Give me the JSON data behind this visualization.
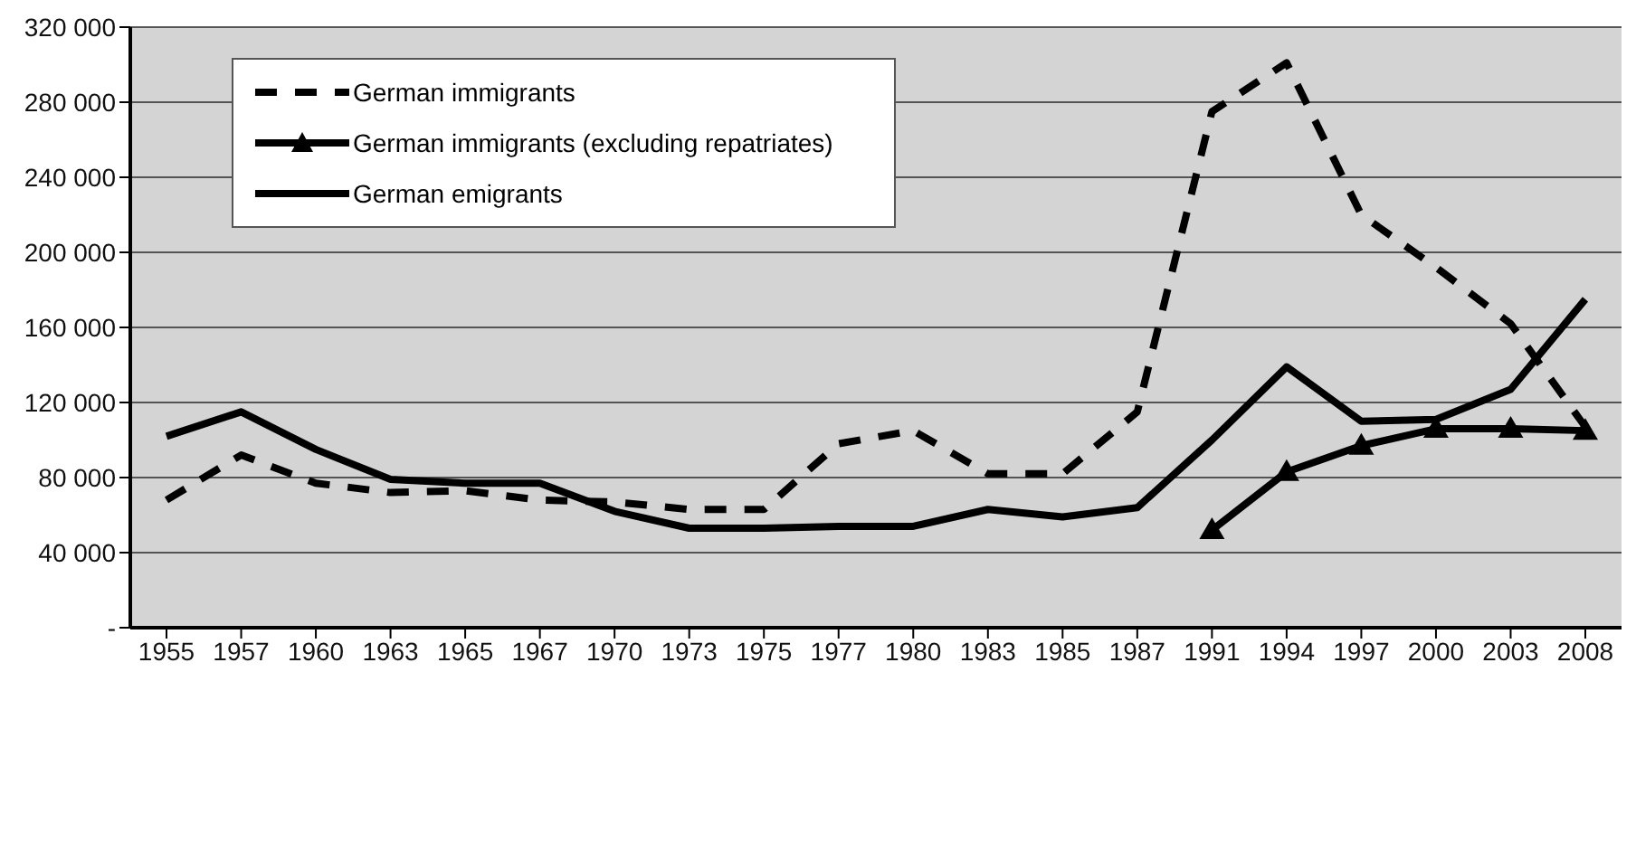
{
  "chart_data": {
    "type": "line",
    "categories": [
      "1955",
      "1957",
      "1960",
      "1963",
      "1965",
      "1967",
      "1970",
      "1973",
      "1975",
      "1977",
      "1980",
      "1983",
      "1985",
      "1987",
      "1991",
      "1994",
      "1997",
      "2000",
      "2003",
      "2008"
    ],
    "series": [
      {
        "name": "German immigrants",
        "color": "#000000",
        "line_style": "dashed",
        "marker": "none",
        "values": [
          68000,
          92000,
          77000,
          72000,
          73000,
          68000,
          67000,
          63000,
          63000,
          98000,
          105000,
          82000,
          82000,
          115000,
          275000,
          301000,
          220000,
          192000,
          162000,
          107000
        ]
      },
      {
        "name": "German immigrants (excluding repatriates)",
        "color": "#000000",
        "line_style": "solid",
        "marker": "triangle",
        "values": [
          null,
          null,
          null,
          null,
          null,
          null,
          null,
          null,
          null,
          null,
          null,
          null,
          null,
          null,
          52000,
          83000,
          97000,
          106000,
          106000,
          105000
        ]
      },
      {
        "name": "German emigrants",
        "color": "#000000",
        "line_style": "solid",
        "marker": "none",
        "values": [
          102000,
          115000,
          95000,
          79000,
          77000,
          77000,
          62000,
          53000,
          53000,
          54000,
          54000,
          63000,
          59000,
          64000,
          100000,
          139000,
          110000,
          111000,
          127000,
          175000
        ]
      }
    ],
    "ylim": [
      0,
      320000
    ],
    "yticks": [
      {
        "value": 0,
        "label": "-"
      },
      {
        "value": 40000,
        "label": "40 000"
      },
      {
        "value": 80000,
        "label": "80 000"
      },
      {
        "value": 120000,
        "label": "120 000"
      },
      {
        "value": 160000,
        "label": "160 000"
      },
      {
        "value": 200000,
        "label": "200 000"
      },
      {
        "value": 240000,
        "label": "240 000"
      },
      {
        "value": 280000,
        "label": "280 000"
      },
      {
        "value": 320000,
        "label": "320 000"
      }
    ],
    "grid": "y",
    "legend": "top left"
  }
}
